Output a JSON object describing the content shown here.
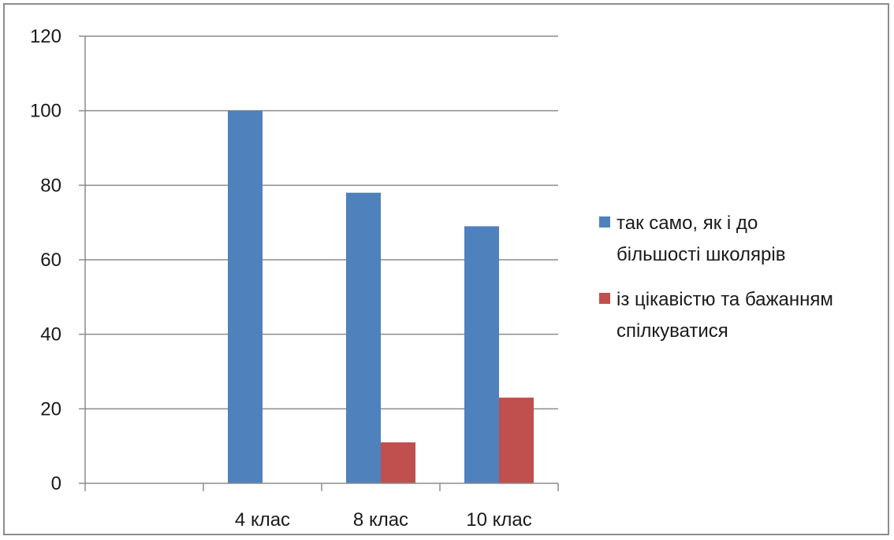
{
  "chart_data": {
    "type": "bar",
    "categories": [
      "",
      "4 клас",
      "8 клас",
      "10 клас"
    ],
    "series": [
      {
        "name": [
          "так само, як і до",
          "більшості школярів"
        ],
        "color": "#4f81bd",
        "values": [
          null,
          100,
          78,
          69
        ]
      },
      {
        "name": [
          "із цікавістю та бажанням",
          "спілкуватися"
        ],
        "color": "#c0504d",
        "values": [
          null,
          0,
          11,
          23
        ]
      }
    ],
    "ylim": [
      0,
      120
    ],
    "yticks": [
      0,
      20,
      40,
      60,
      80,
      100,
      120
    ],
    "grid": true,
    "legend": "right"
  }
}
